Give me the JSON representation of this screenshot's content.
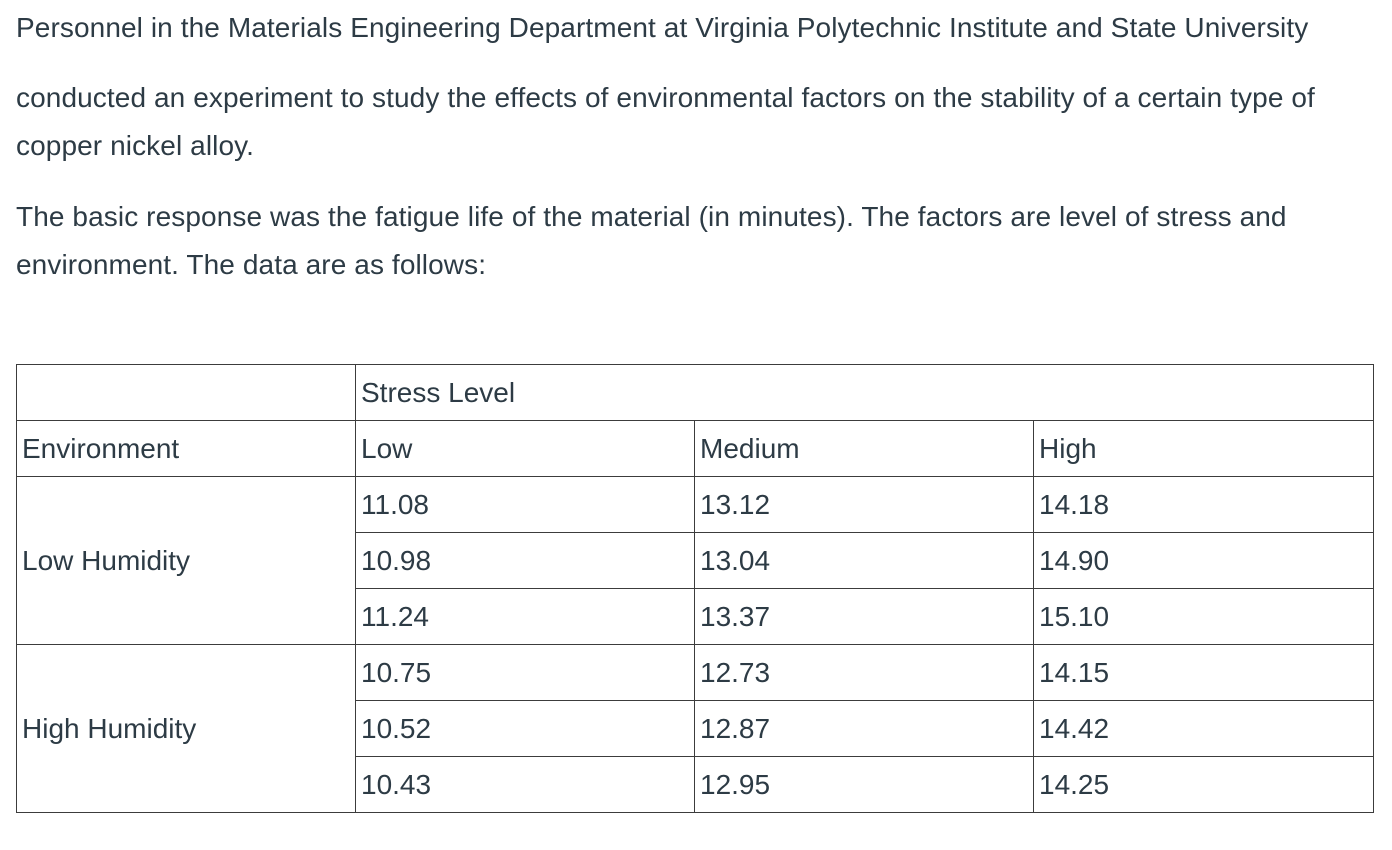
{
  "intro": {
    "paragraph_1": "Personnel in the Materials Engineering Department at Virginia Polytechnic Institute and State University",
    "paragraph_2": "conducted an experiment to study the effects of environmental factors on the stability of a certain type of copper nickel alloy.",
    "paragraph_3": "The basic response was the fatigue life of the material (in minutes). The factors are level of stress and environment. The data are as follows:"
  },
  "table": {
    "super_header": "Stress Level",
    "row_header_label": "Environment",
    "columns": [
      "Low",
      "Medium",
      "High"
    ],
    "groups": [
      {
        "environment": "Low Humidity",
        "rows": [
          [
            "11.08",
            "13.12",
            "14.18"
          ],
          [
            "10.98",
            "13.04",
            "14.90"
          ],
          [
            "11.24",
            "13.37",
            "15.10"
          ]
        ]
      },
      {
        "environment": "High Humidity",
        "rows": [
          [
            "10.75",
            "12.73",
            "14.15"
          ],
          [
            "10.52",
            "12.87",
            "14.42"
          ],
          [
            "10.43",
            "12.95",
            "14.25"
          ]
        ]
      }
    ]
  }
}
